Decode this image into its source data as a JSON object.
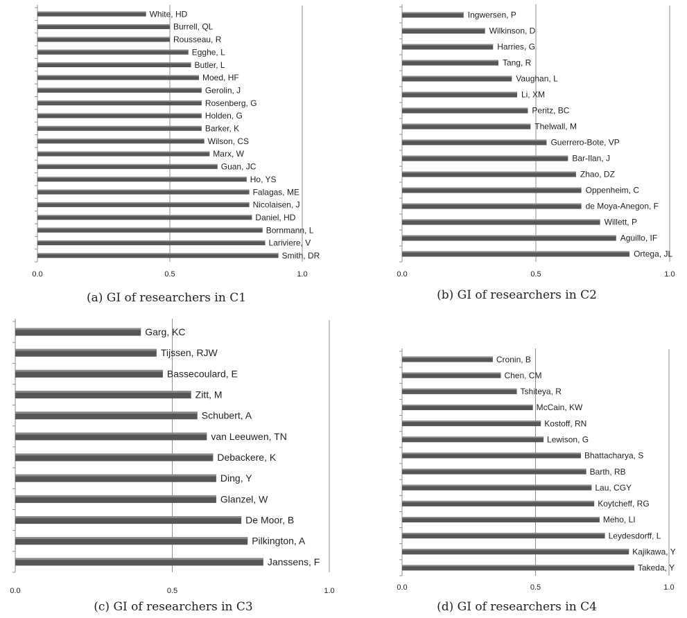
{
  "colors": {
    "bar": "#565656",
    "bar_highlight": "#8a8a8a",
    "axis": "#8c8c8c",
    "text": "#222222"
  },
  "chart_data": [
    {
      "type": "bar",
      "orientation": "horizontal",
      "caption": "(a) GI of researchers in C1",
      "categories": [
        "White, HD",
        "Burrell, QL",
        "Rousseau, R",
        "Egghe, L",
        "Butler, L",
        "Moed, HF",
        "Gerolin, J",
        "Rosenberg, G",
        "Holden, G",
        "Barker, K",
        "Wilson, CS",
        "Marx, W",
        "Guan, JC",
        "Ho, YS",
        "Falagas, ME",
        "Nicolaisen, J",
        "Daniel, HD",
        "Bornmann, L",
        "Lariviere, V",
        "Smith, DR"
      ],
      "values": [
        0.41,
        0.5,
        0.5,
        0.57,
        0.58,
        0.61,
        0.62,
        0.62,
        0.62,
        0.62,
        0.63,
        0.65,
        0.68,
        0.79,
        0.8,
        0.8,
        0.81,
        0.85,
        0.86,
        0.91
      ],
      "xlim": [
        0,
        1
      ],
      "xticks": [
        "0.0",
        "0.5",
        "1.0"
      ],
      "ticks": [
        0,
        0.5,
        1
      ],
      "grid": true
    },
    {
      "type": "bar",
      "orientation": "horizontal",
      "caption": "(b) GI of researchers in C2",
      "categories": [
        "Ingwersen, P",
        "Wilkinson, D",
        "Harries, G",
        "Tang, R",
        "Vaughan, L",
        "Li, XM",
        "Peritz, BC",
        "Thelwall, M",
        "Guerrero-Bote, VP",
        "Bar-Ilan, J",
        "Zhao, DZ",
        "Oppenheim, C",
        "de Moya-Anegon, F",
        "Willett, P",
        "Aguillo, IF",
        "Ortega, JL"
      ],
      "values": [
        0.23,
        0.31,
        0.34,
        0.36,
        0.41,
        0.43,
        0.47,
        0.48,
        0.54,
        0.62,
        0.65,
        0.67,
        0.67,
        0.74,
        0.8,
        0.85
      ],
      "xlim": [
        0,
        1
      ],
      "xticks": [
        "0.0",
        "0.5",
        "1.0"
      ],
      "ticks": [
        0,
        0.5,
        1
      ],
      "grid": true
    },
    {
      "type": "bar",
      "orientation": "horizontal",
      "caption": "(c) GI of researchers in C3",
      "categories": [
        "Garg, KC",
        "Tijssen, RJW",
        "Bassecoulard, E",
        "Zitt, M",
        "Schubert, A",
        "van Leeuwen, TN",
        "Debackere, K",
        "Ding, Y",
        "Glanzel, W",
        "De Moor, B",
        "Pilkington, A",
        "Janssens, F"
      ],
      "values": [
        0.4,
        0.45,
        0.47,
        0.56,
        0.58,
        0.61,
        0.63,
        0.64,
        0.64,
        0.72,
        0.74,
        0.79
      ],
      "xlim": [
        0,
        1
      ],
      "xticks": [
        "0.0",
        "0.5",
        "1.0"
      ],
      "ticks": [
        0,
        0.5,
        1
      ],
      "grid": true
    },
    {
      "type": "bar",
      "orientation": "horizontal",
      "caption": "(d) GI of researchers in C4",
      "categories": [
        "Cronin, B",
        "Chen, CM",
        "Tshiteya, R",
        "McCain, KW",
        "Kostoff, RN",
        "Lewison, G",
        "Bhattacharya, S",
        "Barth, RB",
        "Lau, CGY",
        "Koytcheff, RG",
        "Meho, LI",
        "Leydesdorff, L",
        "Kajikawa, Y",
        "Takeda, Y"
      ],
      "values": [
        0.34,
        0.37,
        0.43,
        0.49,
        0.52,
        0.53,
        0.67,
        0.69,
        0.71,
        0.72,
        0.74,
        0.76,
        0.85,
        0.87
      ],
      "xlim": [
        0,
        1
      ],
      "xticks": [
        "0.0",
        "0.5",
        "1.0"
      ],
      "ticks": [
        0,
        0.5,
        1
      ],
      "grid": true
    }
  ]
}
